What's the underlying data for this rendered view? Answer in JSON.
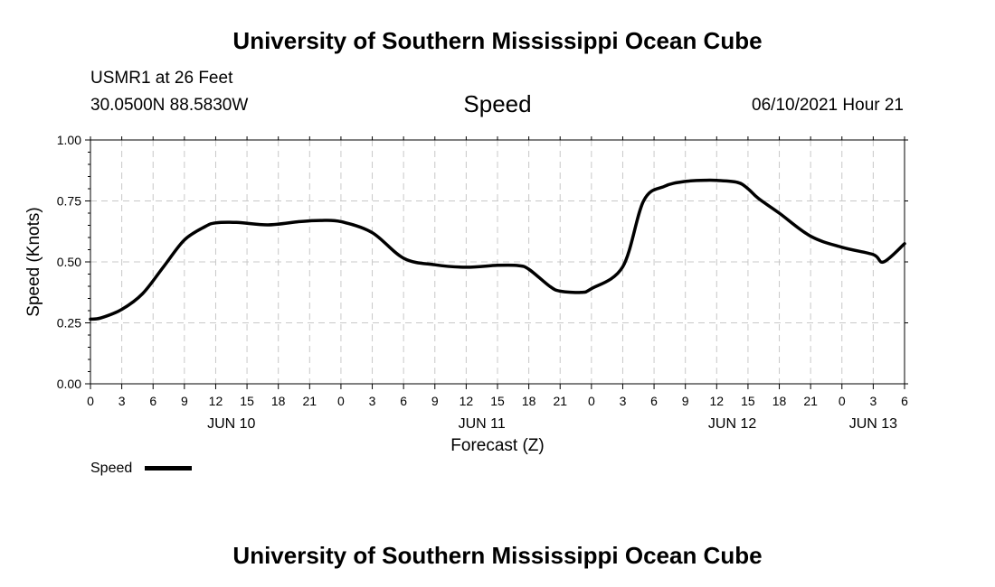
{
  "header": {
    "org_title": "University of Southern Mississippi Ocean Cube",
    "station": "USMR1 at 26 Feet",
    "coords": "30.0500N  88.5830W",
    "variable": "Speed",
    "datetime": "06/10/2021 Hour 21"
  },
  "footer": {
    "org_title": "University of Southern Mississippi Ocean Cube"
  },
  "legend": {
    "label": "Speed",
    "color": "#000000"
  },
  "chart_data": {
    "type": "line",
    "title": "Speed",
    "xlabel": "Forecast (Z)",
    "ylabel": "Speed (Knots)",
    "ylim": [
      0,
      1
    ],
    "xlim": [
      0,
      78
    ],
    "grid": true,
    "legend_position": "bottom-left",
    "y_ticks": [
      "0.00",
      "0.25",
      "0.50",
      "0.75",
      "1.00"
    ],
    "y_tick_values": [
      0,
      0.25,
      0.5,
      0.75,
      1
    ],
    "x_tick_labels": [
      "0",
      "3",
      "6",
      "9",
      "12",
      "15",
      "18",
      "21",
      "0",
      "3",
      "6",
      "9",
      "12",
      "15",
      "18",
      "21",
      "0",
      "3",
      "6",
      "9",
      "12",
      "15",
      "18",
      "21",
      "0",
      "3",
      "6"
    ],
    "date_labels": [
      {
        "label": "JUN 10",
        "x": 13.5
      },
      {
        "label": "JUN 11",
        "x": 37.5
      },
      {
        "label": "JUN 12",
        "x": 61.5
      },
      {
        "label": "JUN 13",
        "x": 75
      }
    ],
    "series": [
      {
        "name": "Speed",
        "x": [
          0,
          1,
          3,
          5,
          7,
          9,
          11,
          12,
          14,
          17,
          20,
          22,
          24,
          27,
          30,
          33,
          36,
          39,
          41,
          42,
          44,
          45,
          47,
          48,
          51,
          53,
          55,
          57,
          59,
          60,
          62,
          63,
          64,
          66,
          69,
          72,
          75,
          76,
          78
        ],
        "values": [
          0.265,
          0.27,
          0.305,
          0.37,
          0.48,
          0.59,
          0.645,
          0.66,
          0.662,
          0.652,
          0.665,
          0.67,
          0.665,
          0.62,
          0.515,
          0.488,
          0.478,
          0.486,
          0.485,
          0.47,
          0.4,
          0.38,
          0.375,
          0.39,
          0.48,
          0.75,
          0.81,
          0.83,
          0.835,
          0.834,
          0.826,
          0.8,
          0.76,
          0.7,
          0.605,
          0.56,
          0.53,
          0.5,
          0.575
        ]
      }
    ]
  }
}
